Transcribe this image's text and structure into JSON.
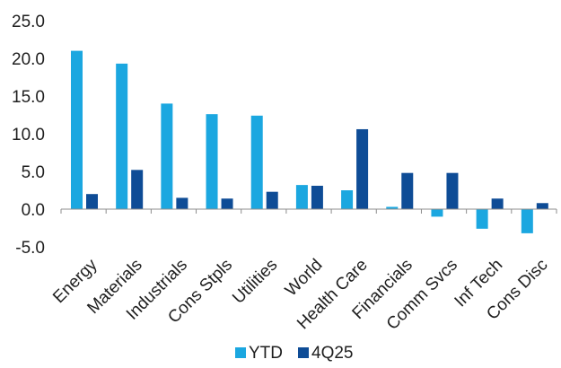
{
  "chart_data": {
    "type": "bar",
    "title": "",
    "xlabel": "",
    "ylabel": "",
    "ylim": [
      -5.0,
      25.0
    ],
    "ytick_step": 5.0,
    "ytick_labels": [
      "-5.0",
      "0.0",
      "5.0",
      "10.0",
      "15.0",
      "20.0",
      "25.0"
    ],
    "grid": false,
    "legend_position": "bottom",
    "categories": [
      "Energy",
      "Materials",
      "Industrials",
      "Cons Stpls",
      "Utilities",
      "World",
      "Health Care",
      "Financials",
      "Comm Svcs",
      "Inf Tech",
      "Cons Disc"
    ],
    "series": [
      {
        "name": "YTD",
        "color": "#1ba7e0",
        "values": [
          21.0,
          19.3,
          14.0,
          12.6,
          12.4,
          3.2,
          2.5,
          0.3,
          -1.0,
          -2.6,
          -3.2
        ]
      },
      {
        "name": "4Q25",
        "color": "#0e4c96",
        "values": [
          2.0,
          5.2,
          1.5,
          1.4,
          2.3,
          3.1,
          10.6,
          4.8,
          4.8,
          1.4,
          0.8
        ]
      }
    ]
  }
}
